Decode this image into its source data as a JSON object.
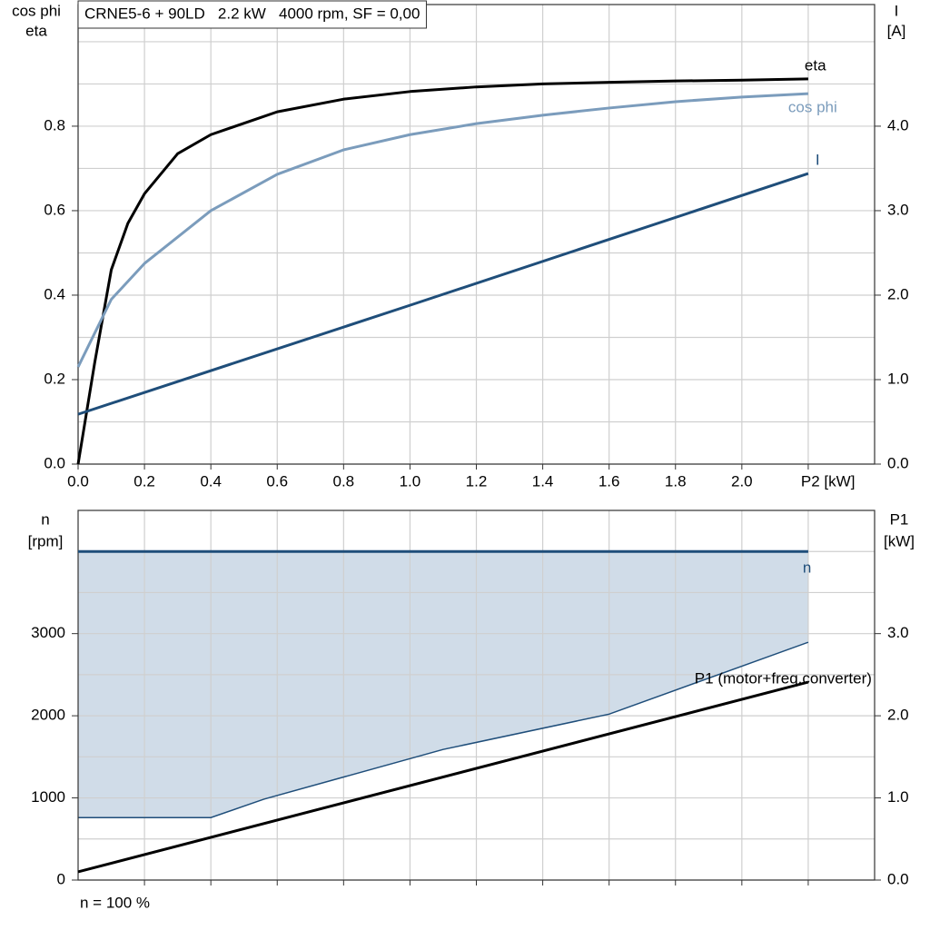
{
  "chart_data": [
    {
      "type": "line",
      "title": "CRNE5-6 + 90LD   2.2 kW   4000 rpm, SF = 0,00",
      "ylabel": [
        "cos phi",
        "eta"
      ],
      "y2label": [
        "I",
        "[A]"
      ],
      "xlim": [
        0,
        2.4
      ],
      "xticks": [
        {
          "value": 0,
          "label": "0.0"
        },
        0.2,
        0.4,
        0.6,
        0.8,
        {
          "value": 1,
          "label": "1.0"
        },
        1.2,
        1.4,
        1.6,
        1.8,
        {
          "value": 2,
          "label": "2.0"
        },
        {
          "value": 2.2,
          "label": "P2 [kW]"
        }
      ],
      "ylim": [
        0,
        1.088
      ],
      "yticks": [
        {
          "value": 0,
          "label": "0.0"
        },
        0.2,
        0.4,
        0.6,
        0.8
      ],
      "y_minor_grid": [
        0.1,
        0.3,
        0.5,
        0.7,
        0.9,
        1.0
      ],
      "y2lim": [
        0,
        5.44
      ],
      "y2ticks": [
        {
          "value": 0,
          "label": "0.0"
        },
        {
          "value": 1,
          "label": "1.0"
        },
        {
          "value": 2,
          "label": "2.0"
        },
        {
          "value": 3,
          "label": "3.0"
        },
        {
          "value": 4,
          "label": "4.0"
        }
      ],
      "grid": true,
      "series": [
        {
          "name": "eta",
          "color": "#000000",
          "x": [
            0,
            0.05,
            0.1,
            0.15,
            0.2,
            0.3,
            0.4,
            0.6,
            0.8,
            1.0,
            1.2,
            1.4,
            1.6,
            1.8,
            2.0,
            2.2
          ],
          "values": [
            0,
            0.24,
            0.46,
            0.57,
            0.64,
            0.735,
            0.78,
            0.834,
            0.864,
            0.882,
            0.893,
            0.9,
            0.904,
            0.907,
            0.909,
            0.912
          ]
        },
        {
          "name": "cos phi",
          "color": "#7b9cbc",
          "x": [
            0,
            0.05,
            0.1,
            0.2,
            0.4,
            0.6,
            0.8,
            1.0,
            1.2,
            1.4,
            1.6,
            1.8,
            2.0,
            2.2
          ],
          "values": [
            0.23,
            0.31,
            0.39,
            0.475,
            0.6,
            0.686,
            0.744,
            0.78,
            0.806,
            0.826,
            0.843,
            0.858,
            0.869,
            0.877
          ]
        },
        {
          "name": "I",
          "color": "#1f4e7a",
          "axis": "y2",
          "x": [
            0,
            1.0,
            2.2
          ],
          "values": [
            0.59,
            1.88,
            3.44
          ]
        }
      ]
    },
    {
      "type": "area-line",
      "ylabel": [
        "n",
        "[rpm]"
      ],
      "y2label": [
        "P1",
        "[kW]"
      ],
      "xlim": [
        0,
        2.4
      ],
      "xgrid": [
        0.2,
        0.4,
        0.6,
        0.8,
        1.0,
        1.2,
        1.4,
        1.6,
        1.8,
        2.0,
        2.2
      ],
      "ylim": [
        0,
        4500
      ],
      "yticks": [
        0,
        1000,
        2000,
        3000
      ],
      "y_minor_grid": [
        500,
        1500,
        2500,
        3500,
        4000
      ],
      "y2lim": [
        0,
        4.5
      ],
      "y2ticks": [
        {
          "value": 0,
          "label": "0.0"
        },
        {
          "value": 1,
          "label": "1.0"
        },
        {
          "value": 2,
          "label": "2.0"
        },
        {
          "value": 3,
          "label": "3.0"
        }
      ],
      "grid": true,
      "band": {
        "color": "#d0dce8",
        "line_color": "#1f4e7a",
        "x": [
          0,
          0.4,
          0.56,
          1.1,
          1.6,
          2.2
        ],
        "values": [
          760,
          760,
          985,
          1590,
          2020,
          2895
        ]
      },
      "series": [
        {
          "name": "n",
          "color": "#1f4e7a",
          "x": [
            0,
            2.2
          ],
          "values": [
            4000,
            4000
          ]
        },
        {
          "name": "P1 (motor+freq.converter)",
          "color": "#000000",
          "axis": "y2",
          "x": [
            0,
            2.2
          ],
          "values": [
            0.1,
            2.41
          ]
        }
      ],
      "note": "n = 100 %"
    }
  ]
}
